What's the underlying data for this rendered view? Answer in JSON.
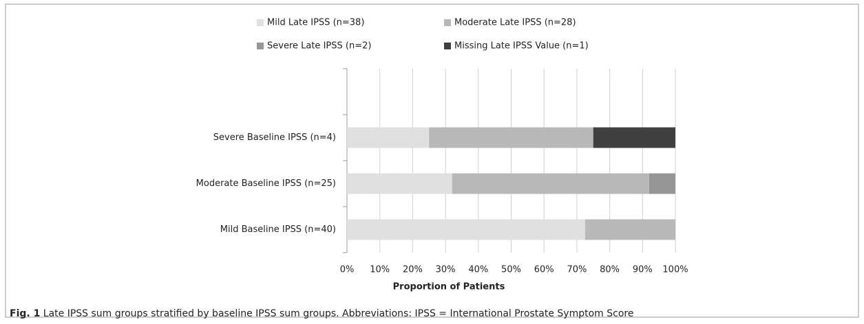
{
  "chart_data": {
    "type": "stacked-bar-horizontal",
    "categories": [
      "Mild Baseline IPSS (n=40)",
      "Moderate Baseline IPSS (n=25)",
      "Severe Baseline IPSS (n=4)",
      null
    ],
    "series": [
      {
        "name": "Mild Late IPSS (n=38)",
        "color": "#e0e0e0",
        "values": [
          72.5,
          32,
          25,
          null
        ]
      },
      {
        "name": "Moderate Late IPSS (n=28)",
        "color": "#b8b8b8",
        "values": [
          27.5,
          60,
          50,
          null
        ]
      },
      {
        "name": "Severe Late IPSS (n=2)",
        "color": "#969696",
        "values": [
          0,
          8,
          0,
          null
        ]
      },
      {
        "name": "Missing Late IPSS Value (n=1)",
        "color": "#404040",
        "values": [
          0,
          0,
          25,
          null
        ]
      }
    ],
    "xlim": [
      0,
      100
    ],
    "xticks": [
      {
        "value": 0,
        "label": "0%"
      },
      {
        "value": 10,
        "label": "10%"
      },
      {
        "value": 20,
        "label": "20%"
      },
      {
        "value": 30,
        "label": "30%"
      },
      {
        "value": 40,
        "label": "40%"
      },
      {
        "value": 50,
        "label": "50%"
      },
      {
        "value": 60,
        "label": "60%"
      },
      {
        "value": 70,
        "label": "70%"
      },
      {
        "value": 80,
        "label": "80%"
      },
      {
        "value": 90,
        "label": "90%"
      },
      {
        "value": 100,
        "label": "100%"
      }
    ],
    "x_label": "Proportion of Patients",
    "grid": true,
    "legend": "top",
    "caption": {
      "label": "Fig. 1",
      "text": "Late IPSS sum groups stratified by baseline IPSS sum groups. Abbreviations: IPSS = International Prostate Symptom Score"
    }
  }
}
